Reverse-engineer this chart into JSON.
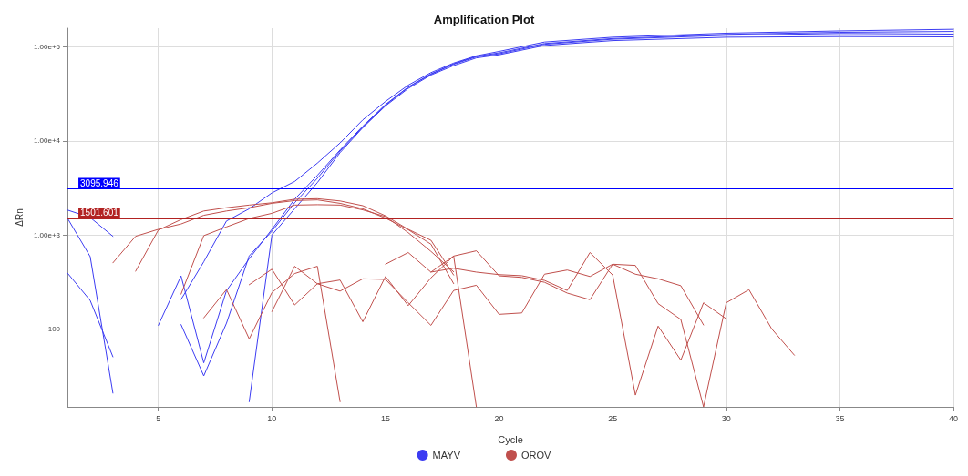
{
  "chart_data": {
    "type": "line",
    "title": "Amplification Plot",
    "xlabel": "Cycle",
    "ylabel": "ΔRn",
    "log": "y",
    "grid": true,
    "legend": "bottom",
    "marker": "none",
    "line_style": "solid",
    "xlim": [
      1,
      40
    ],
    "xticks": [
      5,
      10,
      15,
      20,
      25,
      30,
      35,
      40
    ],
    "ylim": [
      15,
      157000
    ],
    "yticks": [
      100,
      {
        "value": 1000,
        "label": "1.00e+3"
      },
      {
        "value": 10000,
        "label": "1.00e+4"
      },
      {
        "value": 100000,
        "label": "1.00e+5"
      }
    ],
    "ref_lines": [
      {
        "axis": "y",
        "value": 3095.946,
        "label": "3095.946",
        "color": "#0000ff"
      },
      {
        "axis": "y",
        "value": 1501.601,
        "label": "1501.601",
        "color": "#b22222"
      }
    ],
    "series": [
      {
        "name": "MAYV",
        "color": "#3c3cf2",
        "x": [
          6,
          7,
          8,
          9,
          10,
          11,
          12,
          13,
          14,
          15,
          16,
          17,
          18,
          19,
          20,
          22,
          25,
          30,
          35,
          40
        ],
        "values": [
          207,
          520,
          1410,
          1900,
          2800,
          3700,
          5800,
          9500,
          16700,
          26200,
          39000,
          53000,
          67000,
          80000,
          89000,
          112000,
          126000,
          139000,
          147000,
          153000
        ]
      },
      {
        "color": "#3c3cf2",
        "x": [
          5,
          6,
          7,
          8,
          9,
          10,
          11,
          12,
          13,
          14,
          15,
          16,
          17,
          18,
          19,
          20,
          22,
          25,
          30,
          35,
          40
        ],
        "values": [
          110,
          368,
          44,
          257,
          560,
          1150,
          2400,
          4300,
          8000,
          14300,
          24300,
          37300,
          51400,
          65800,
          78900,
          86000,
          108000,
          122000,
          135000,
          142000,
          145000
        ]
      },
      {
        "color": "#3c3cf2",
        "x": [
          6,
          7,
          8,
          9,
          10,
          11,
          12,
          13,
          14,
          15,
          16,
          17,
          18,
          19,
          20,
          22,
          25,
          30,
          35,
          40
        ],
        "values": [
          112,
          32,
          116,
          600,
          1100,
          2200,
          4000,
          7800,
          14000,
          24000,
          37000,
          51000,
          65000,
          78000,
          84000,
          106000,
          120000,
          132000,
          138000,
          136000
        ]
      },
      {
        "color": "#3c3cf2",
        "x": [
          9,
          10,
          11,
          12,
          13,
          14,
          15,
          16,
          17,
          18,
          19,
          20,
          22,
          25,
          30,
          35,
          40
        ],
        "values": [
          17,
          1000,
          1900,
          3600,
          7500,
          13800,
          23500,
          36000,
          50000,
          63000,
          76000,
          82000,
          103000,
          116000,
          126000,
          128000,
          127000
        ]
      },
      {
        "color": "#3c3cf2",
        "x": [
          1,
          2,
          3
        ],
        "values": [
          1843,
          1534,
          970
        ]
      },
      {
        "color": "#3c3cf2",
        "x": [
          1,
          2,
          3
        ],
        "values": [
          1510,
          590,
          21
        ]
      },
      {
        "color": "#3c3cf2",
        "x": [
          1,
          2,
          3
        ],
        "values": [
          395,
          202,
          51
        ]
      },
      {
        "name": "OROV",
        "color": "#c0504d",
        "x": [
          3,
          4,
          5,
          6,
          7,
          8,
          9,
          10,
          11,
          12,
          13,
          14,
          15,
          16,
          17,
          18
        ],
        "values": [
          507,
          970,
          1150,
          1310,
          1620,
          1800,
          1950,
          2170,
          2320,
          2360,
          2170,
          1900,
          1510,
          1140,
          800,
          305
        ]
      },
      {
        "color": "#c0504d",
        "x": [
          4,
          5,
          6,
          7,
          8,
          9,
          10,
          11,
          12,
          13,
          14,
          15,
          16,
          17,
          18
        ],
        "values": [
          413,
          1130,
          1460,
          1800,
          1950,
          2080,
          2200,
          2400,
          2430,
          2300,
          2050,
          1600,
          1150,
          880,
          376
        ]
      },
      {
        "color": "#c0504d",
        "x": [
          6,
          7,
          8,
          9,
          10,
          11,
          12,
          13,
          14,
          15,
          16,
          17,
          18
        ],
        "values": [
          236,
          985,
          1220,
          1500,
          1700,
          2080,
          2100,
          2080,
          1850,
          1570,
          1060,
          670,
          407
        ]
      },
      {
        "color": "#c0504d",
        "x": [
          7,
          8,
          9,
          10,
          11,
          12,
          13
        ],
        "values": [
          132,
          264,
          79,
          245,
          390,
          466,
          17
        ]
      },
      {
        "color": "#c0504d",
        "x": [
          9,
          10,
          11,
          12,
          13,
          14,
          15,
          16,
          17,
          18,
          19,
          20,
          21,
          22,
          23,
          24,
          25,
          26,
          27,
          28,
          29,
          30,
          31,
          32,
          33
        ],
        "values": [
          297,
          434,
          181,
          304,
          333,
          120,
          363,
          178,
          351,
          598,
          680,
          369,
          355,
          315,
          242,
          206,
          490,
          476,
          187,
          127,
          15,
          191,
          263,
          101,
          53
        ]
      },
      {
        "color": "#c0504d",
        "x": [
          10,
          11,
          12,
          13,
          14,
          15,
          16,
          17,
          18,
          19,
          20,
          21,
          22,
          23,
          24,
          25,
          26,
          27,
          28,
          29
        ],
        "values": [
          154,
          466,
          304,
          254,
          343,
          338,
          191,
          110,
          258,
          293,
          144,
          149,
          384,
          425,
          363,
          490,
          384,
          343,
          290,
          111
        ]
      },
      {
        "color": "#c0504d",
        "x": [
          15,
          16,
          17,
          18,
          19,
          20,
          21,
          22,
          23,
          24,
          25,
          26,
          27,
          28,
          29,
          30
        ],
        "values": [
          490,
          652,
          404,
          444,
          404,
          380,
          370,
          330,
          258,
          652,
          376,
          20,
          108,
          47,
          191,
          129
        ]
      },
      {
        "color": "#c0504d",
        "x": [
          17,
          18,
          19
        ],
        "values": [
          404,
          598,
          15
        ]
      }
    ]
  }
}
